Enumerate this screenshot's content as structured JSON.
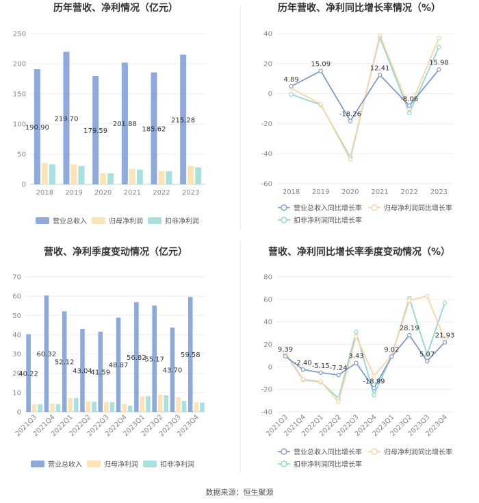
{
  "source_text": "数据来源：恒生聚源",
  "colors": {
    "revenue": "#8eaadb",
    "net_profit": "#fbe3b5",
    "deducted_profit": "#a8e0e0",
    "revenue_growth": "#7f9ccf",
    "net_growth": "#fcd3a2",
    "deducted_growth": "#8fd8d0"
  },
  "chart_data": [
    {
      "id": "annual-bar",
      "type": "bar",
      "title": "历年营收、净利情况（亿元）",
      "categories": [
        "2018",
        "2019",
        "2020",
        "2021",
        "2022",
        "2023"
      ],
      "ylim": [
        0,
        250
      ],
      "yticks": [
        0,
        50,
        100,
        150,
        200,
        250
      ],
      "series": [
        {
          "name": "营业总收入",
          "color_key": "revenue",
          "values": [
            190.9,
            219.7,
            179.59,
            201.88,
            185.62,
            215.28
          ],
          "labels": [
            "190.90",
            "219.70",
            "179.59",
            "201.88",
            "185.62",
            "215.28"
          ]
        },
        {
          "name": "归母净利润",
          "color_key": "net_profit",
          "values": [
            35.0,
            33.0,
            18.5,
            25.5,
            22.0,
            30.5
          ]
        },
        {
          "name": "扣非净利润",
          "color_key": "deducted_profit",
          "values": [
            33.5,
            30.5,
            18.0,
            24.5,
            21.5,
            28.0
          ]
        }
      ]
    },
    {
      "id": "annual-line",
      "type": "line",
      "title": "历年营收、净利同比增长率情况（%）",
      "categories": [
        "2018",
        "2019",
        "2020",
        "2021",
        "2022",
        "2023"
      ],
      "ylim": [
        -60,
        40
      ],
      "yticks": [
        -60,
        -40,
        -20,
        0,
        20,
        40
      ],
      "series": [
        {
          "name": "营业总收入同比增长率",
          "color_key": "revenue_growth",
          "values": [
            4.89,
            15.09,
            -18.26,
            12.41,
            -8.06,
            15.98
          ],
          "labels": [
            "4.89",
            "15.09",
            "-18.26",
            "12.41",
            "-8.06",
            "15.98"
          ]
        },
        {
          "name": "归母净利润同比增长率",
          "color_key": "net_growth",
          "values": [
            3.5,
            -7.0,
            -44.0,
            39.0,
            -10.0,
            37.0
          ]
        },
        {
          "name": "扣非净利润同比增长率",
          "color_key": "deducted_growth",
          "values": [
            -0.5,
            -7.5,
            -42.5,
            37.5,
            -13.0,
            31.0
          ]
        }
      ]
    },
    {
      "id": "quarter-bar",
      "type": "bar",
      "title": "营收、净利季度变动情况（亿元）",
      "categories": [
        "2021Q3",
        "2021Q4",
        "2022Q1",
        "2022Q2",
        "2022Q3",
        "2022Q4",
        "2023Q1",
        "2023Q2",
        "2023Q3",
        "2023Q4"
      ],
      "ylim": [
        0,
        70
      ],
      "yticks": [
        0,
        10,
        20,
        30,
        40,
        50,
        60,
        70
      ],
      "series": [
        {
          "name": "营业总收入",
          "color_key": "revenue",
          "values": [
            40.22,
            60.32,
            52.12,
            43.04,
            41.59,
            48.87,
            56.82,
            55.17,
            43.7,
            59.58
          ],
          "labels": [
            "40.22",
            "60.32",
            "52.12",
            "43.04",
            "41.59",
            "48.87",
            "56.82",
            "55.17",
            "43.70",
            "59.58"
          ]
        },
        {
          "name": "归母净利润",
          "color_key": "net_profit",
          "values": [
            4.0,
            4.3,
            7.2,
            5.3,
            5.0,
            4.2,
            8.0,
            8.9,
            7.7,
            5.0
          ]
        },
        {
          "name": "扣非净利润",
          "color_key": "deducted_profit",
          "values": [
            3.9,
            4.0,
            7.2,
            5.2,
            5.0,
            3.2,
            8.1,
            8.6,
            5.7,
            4.8
          ]
        }
      ]
    },
    {
      "id": "quarter-line",
      "type": "line",
      "title": "营收、净利同比增长率季度变动情况（%）",
      "categories": [
        "2021Q3",
        "2021Q4",
        "2022Q1",
        "2022Q2",
        "2022Q3",
        "2022Q4",
        "2023Q1",
        "2023Q2",
        "2023Q3",
        "2023Q4"
      ],
      "ylim": [
        -40,
        80
      ],
      "yticks": [
        -40,
        -20,
        0,
        20,
        40,
        60,
        80
      ],
      "series": [
        {
          "name": "营业总收入同比增长率",
          "color_key": "revenue_growth",
          "values": [
            9.39,
            -2.4,
            -5.15,
            -7.24,
            3.43,
            -18.99,
            9.02,
            28.19,
            5.07,
            21.93
          ],
          "labels": [
            "9.39",
            "-2.40",
            "-5.15",
            "-7.24",
            "3.43",
            "-18.99",
            "9.02",
            "28.19",
            "5.07",
            "21.93"
          ]
        },
        {
          "name": "归母净利润同比增长率",
          "color_key": "net_growth",
          "values": [
            13.0,
            -11.0,
            -13.0,
            -31.0,
            27.0,
            -8.0,
            10.0,
            59.0,
            63.0,
            24.0
          ]
        },
        {
          "name": "扣非净利润同比增长率",
          "color_key": "deducted_growth",
          "values": [
            12.0,
            -11.5,
            -13.5,
            -28.0,
            31.0,
            -25.0,
            10.0,
            61.0,
            11.0,
            57.0
          ]
        }
      ]
    }
  ]
}
